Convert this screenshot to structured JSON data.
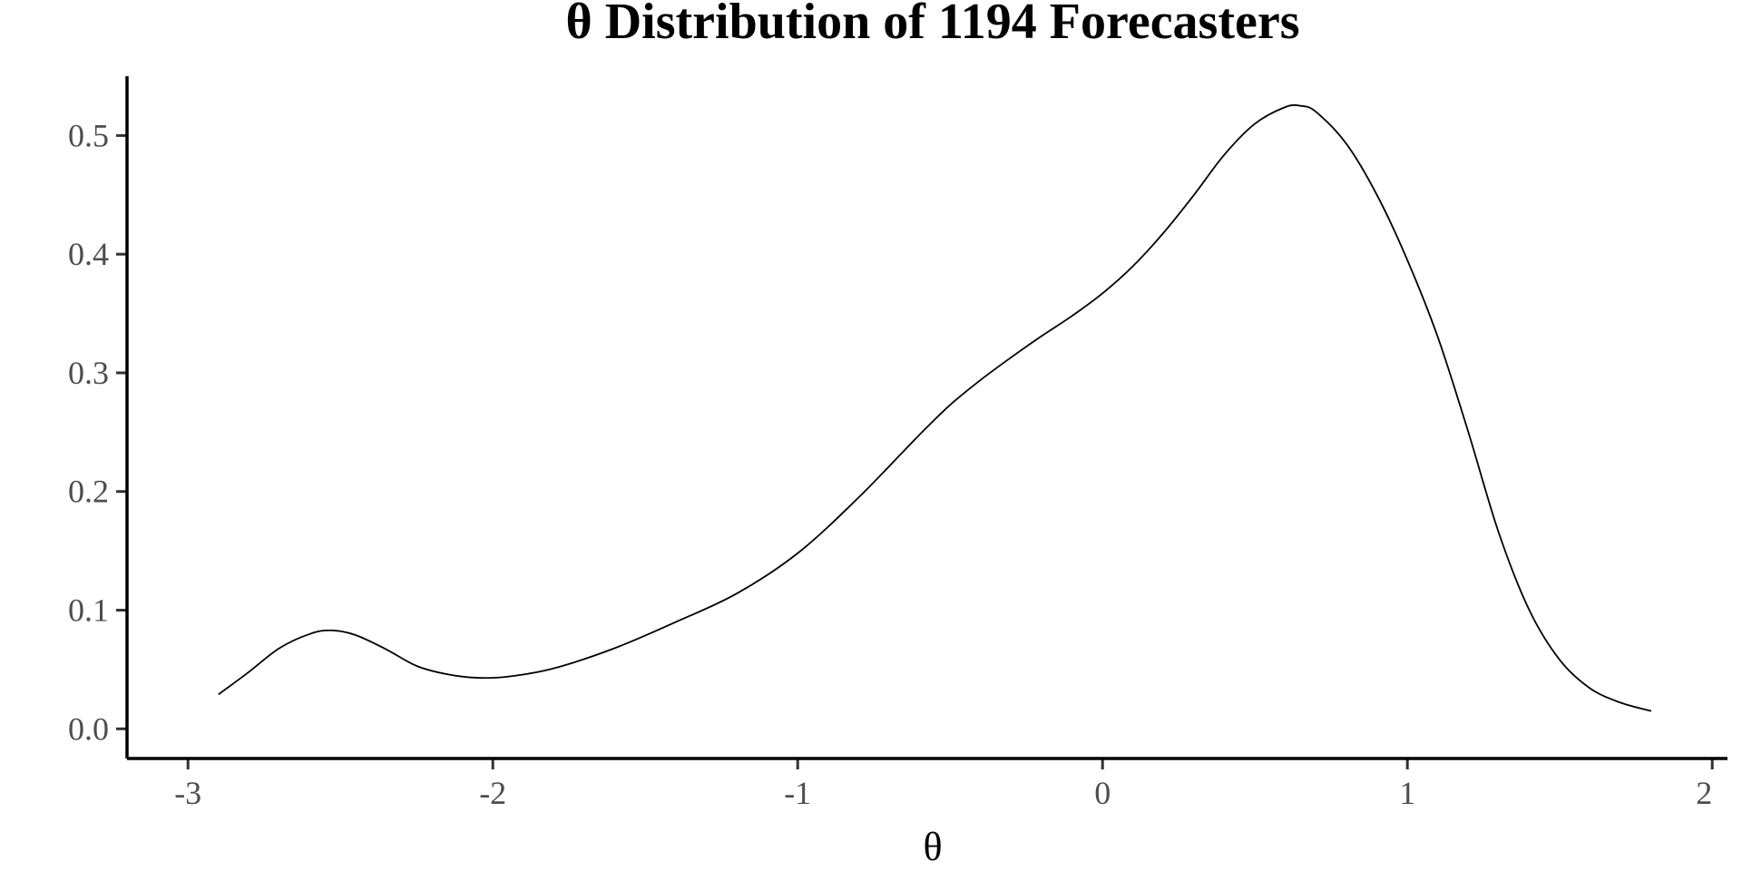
{
  "chart_data": {
    "type": "line",
    "title": "θ Distribution of 1194 Forecasters",
    "xlabel": "θ",
    "ylabel": "",
    "xlim": [
      -3.2,
      2.05
    ],
    "ylim": [
      -0.025,
      0.55
    ],
    "grid": false,
    "legend": "none",
    "x_ticks": [
      -3,
      -2,
      -1,
      0,
      1,
      2
    ],
    "x_tick_labels": [
      "-3",
      "-2",
      "-1",
      "0",
      "1",
      "2"
    ],
    "y_ticks": [
      0.0,
      0.1,
      0.2,
      0.3,
      0.4,
      0.5
    ],
    "y_tick_labels": [
      "0.0",
      "0.1",
      "0.2",
      "0.3",
      "0.4",
      "0.5"
    ],
    "series": [
      {
        "x": [
          -2.9,
          -2.8,
          -2.7,
          -2.6,
          -2.53,
          -2.45,
          -2.35,
          -2.25,
          -2.15,
          -2.05,
          -1.95,
          -1.8,
          -1.6,
          -1.4,
          -1.2,
          -1.0,
          -0.8,
          -0.6,
          -0.5,
          -0.4,
          -0.3,
          -0.2,
          -0.1,
          0.0,
          0.1,
          0.2,
          0.3,
          0.4,
          0.5,
          0.6,
          0.65,
          0.7,
          0.8,
          0.9,
          1.0,
          1.1,
          1.2,
          1.3,
          1.4,
          1.5,
          1.6,
          1.7,
          1.8
        ],
        "y": [
          0.029,
          0.048,
          0.068,
          0.08,
          0.083,
          0.079,
          0.067,
          0.053,
          0.046,
          0.043,
          0.044,
          0.051,
          0.068,
          0.09,
          0.114,
          0.148,
          0.195,
          0.248,
          0.273,
          0.294,
          0.313,
          0.331,
          0.348,
          0.367,
          0.39,
          0.418,
          0.45,
          0.484,
          0.51,
          0.524,
          0.525,
          0.52,
          0.493,
          0.45,
          0.395,
          0.33,
          0.25,
          0.165,
          0.1,
          0.058,
          0.034,
          0.022,
          0.015
        ]
      }
    ]
  }
}
